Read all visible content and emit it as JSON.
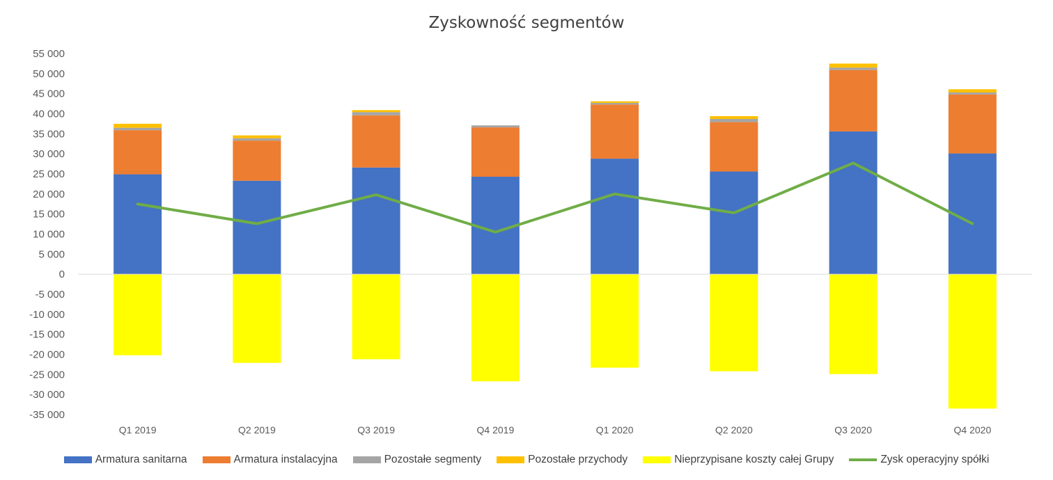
{
  "chart_data": {
    "type": "bar",
    "stacked": true,
    "title": "Zyskowność segmentów",
    "categories": [
      "Q1 2019",
      "Q2 2019",
      "Q3 2019",
      "Q4 2019",
      "Q1 2020",
      "Q2 2020",
      "Q3 2020",
      "Q4 2020"
    ],
    "ylim": [
      -35000,
      55000
    ],
    "ytick_step": 5000,
    "ytick_labels": [
      "55 000",
      "50 000",
      "45 000",
      "40 000",
      "35 000",
      "30 000",
      "25 000",
      "20 000",
      "15 000",
      "10 000",
      "5 000",
      "0",
      "-5 000",
      "-10 000",
      "-15 000",
      "-20 000",
      "-25 000",
      "-30 000",
      "-35 000"
    ],
    "grid": false,
    "legend_position": "bottom",
    "series": [
      {
        "name": "Armatura sanitarna",
        "kind": "bar",
        "color": "#4472C4",
        "values": [
          24900,
          23300,
          26600,
          24300,
          28800,
          25600,
          35600,
          30100
        ]
      },
      {
        "name": "Armatura instalacyjna",
        "kind": "bar",
        "color": "#ED7D31",
        "values": [
          11000,
          10000,
          13000,
          12300,
          13500,
          12300,
          15300,
          14700
        ]
      },
      {
        "name": "Pozostałe segmenty",
        "kind": "bar",
        "color": "#A5A5A5",
        "values": [
          600,
          600,
          800,
          500,
          400,
          800,
          600,
          500
        ]
      },
      {
        "name": "Pozostałe przychody",
        "kind": "bar",
        "color": "#FFC000",
        "values": [
          1000,
          700,
          500,
          0,
          400,
          700,
          1000,
          800
        ]
      },
      {
        "name": "Nieprzypisane koszty całej Grupy",
        "kind": "bar",
        "color": "#FFFF00",
        "values": [
          -20200,
          -22100,
          -21200,
          -26700,
          -23300,
          -24200,
          -24900,
          -33500
        ]
      },
      {
        "name": "Zysk operacyjny spółki",
        "kind": "line",
        "color": "#70AD47",
        "values": [
          17500,
          12600,
          19800,
          10500,
          20000,
          15300,
          27700,
          12600
        ]
      }
    ]
  }
}
